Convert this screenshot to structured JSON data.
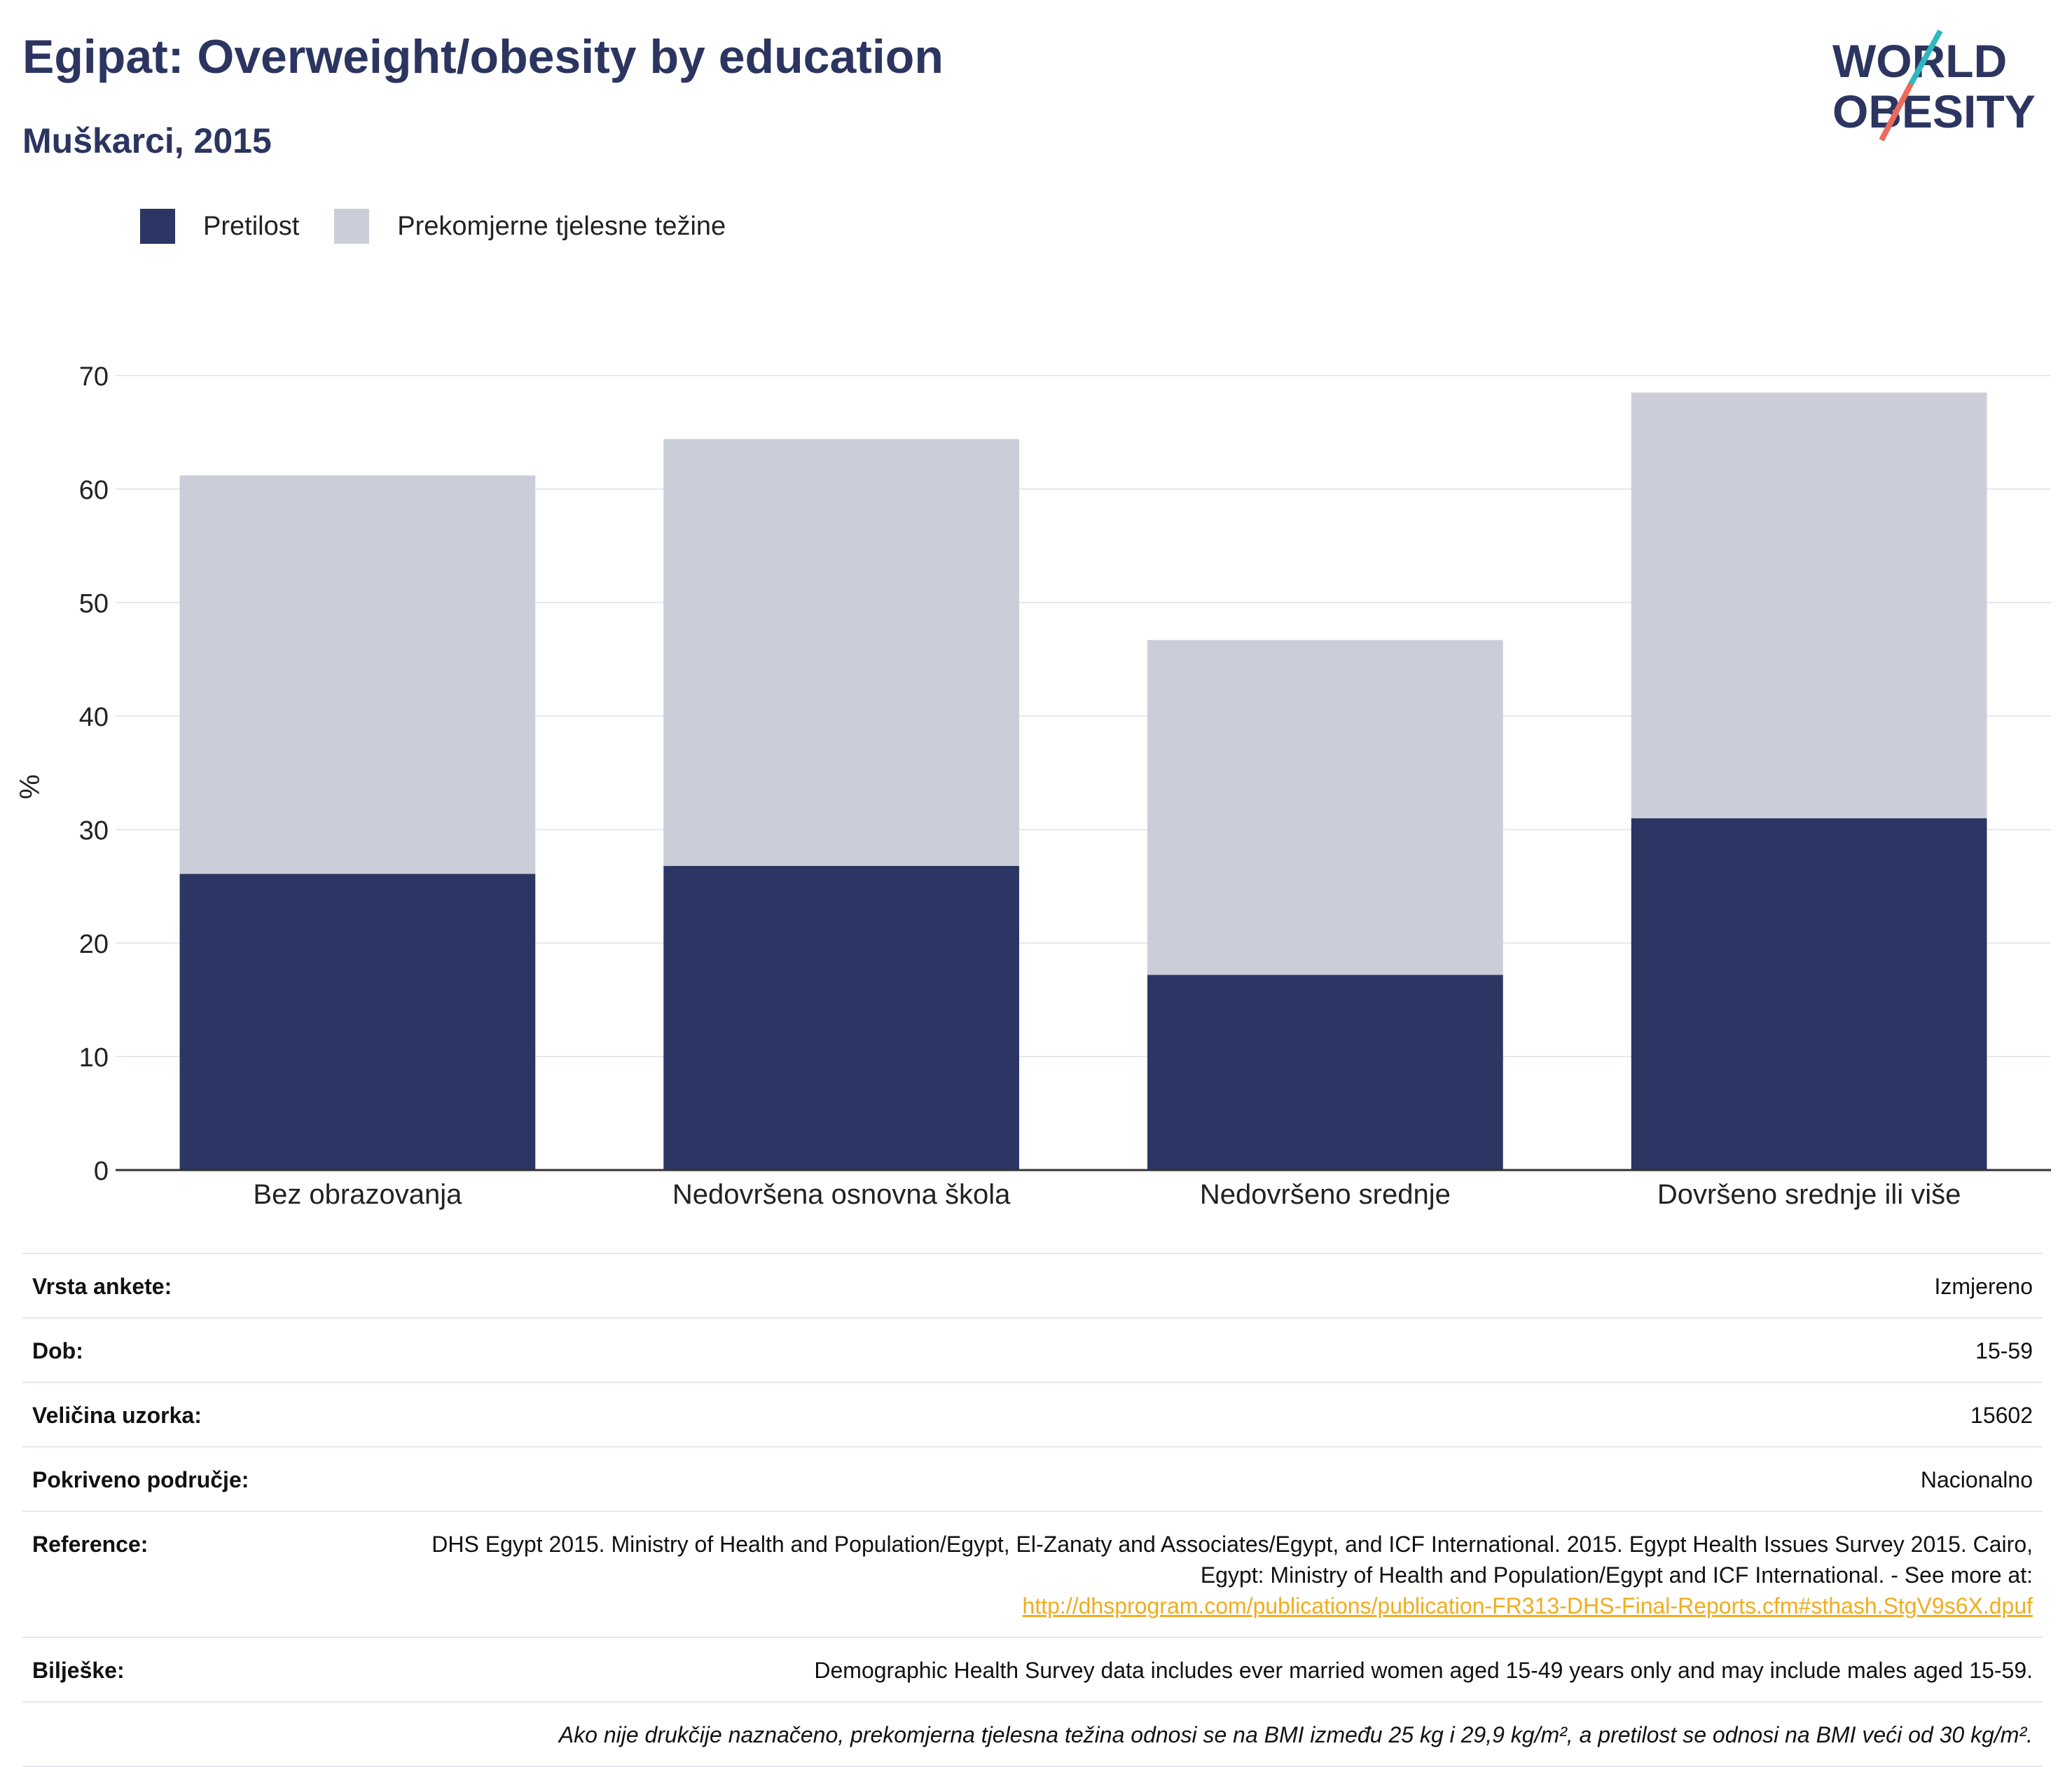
{
  "header": {
    "title": "Egipat: Overweight/obesity by education",
    "subtitle": "Muškarci, 2015"
  },
  "logo": {
    "line1": "WORLD",
    "line2": "OBESITY"
  },
  "legend": [
    {
      "label": "Pretilost",
      "color": "#2b3664"
    },
    {
      "label": "Prekomjerne tjelesne težine",
      "color": "#cbcdd9"
    }
  ],
  "chart_data": {
    "type": "bar",
    "stacked": true,
    "categories": [
      "Bez obrazovanja",
      "Nedovršena osnovna škola",
      "Nedovršeno srednje",
      "Dovršeno srednje ili više"
    ],
    "series": [
      {
        "name": "Pretilost",
        "color": "#2b3664",
        "values": [
          26.1,
          26.8,
          17.2,
          31.0
        ]
      },
      {
        "name": "Prekomjerne tjelesne težine",
        "color": "#cbcdd9",
        "values": [
          35.1,
          37.6,
          29.5,
          37.5
        ]
      }
    ],
    "ylabel": "%",
    "ylim": [
      0,
      70
    ],
    "yticks": [
      0,
      10,
      20,
      30,
      40,
      50,
      60,
      70
    ],
    "grid": true
  },
  "meta": {
    "survey_type": {
      "label": "Vrsta ankete:",
      "value": "Izmjereno"
    },
    "age": {
      "label": "Dob:",
      "value": "15-59"
    },
    "sample_size": {
      "label": "Veličina uzorka:",
      "value": "15602"
    },
    "area": {
      "label": "Pokriveno područje:",
      "value": "Nacionalno"
    },
    "reference": {
      "label": "Reference:",
      "text": "DHS Egypt 2015. Ministry of Health and Population/Egypt, El-Zanaty and Associates/Egypt, and ICF International. 2015. Egypt Health Issues Survey 2015. Cairo, Egypt: Ministry of Health and Population/Egypt and ICF International. - See more at:",
      "link": "http://dhsprogram.com/publications/publication-FR313-DHS-Final-Reports.cfm#sthash.StgV9s6X.dpuf"
    },
    "notes": {
      "label": "Bilješke:",
      "value": "Demographic Health Survey data includes ever married women aged 15-49 years only and may include males aged 15-59."
    },
    "footnote": "Ako nije drukčije naznačeno, prekomjerna tjelesna težina odnosi se na BMI između 25 kg i 29,9 kg/m², a pretilost se odnosi na BMI veći od 30 kg/m²."
  }
}
